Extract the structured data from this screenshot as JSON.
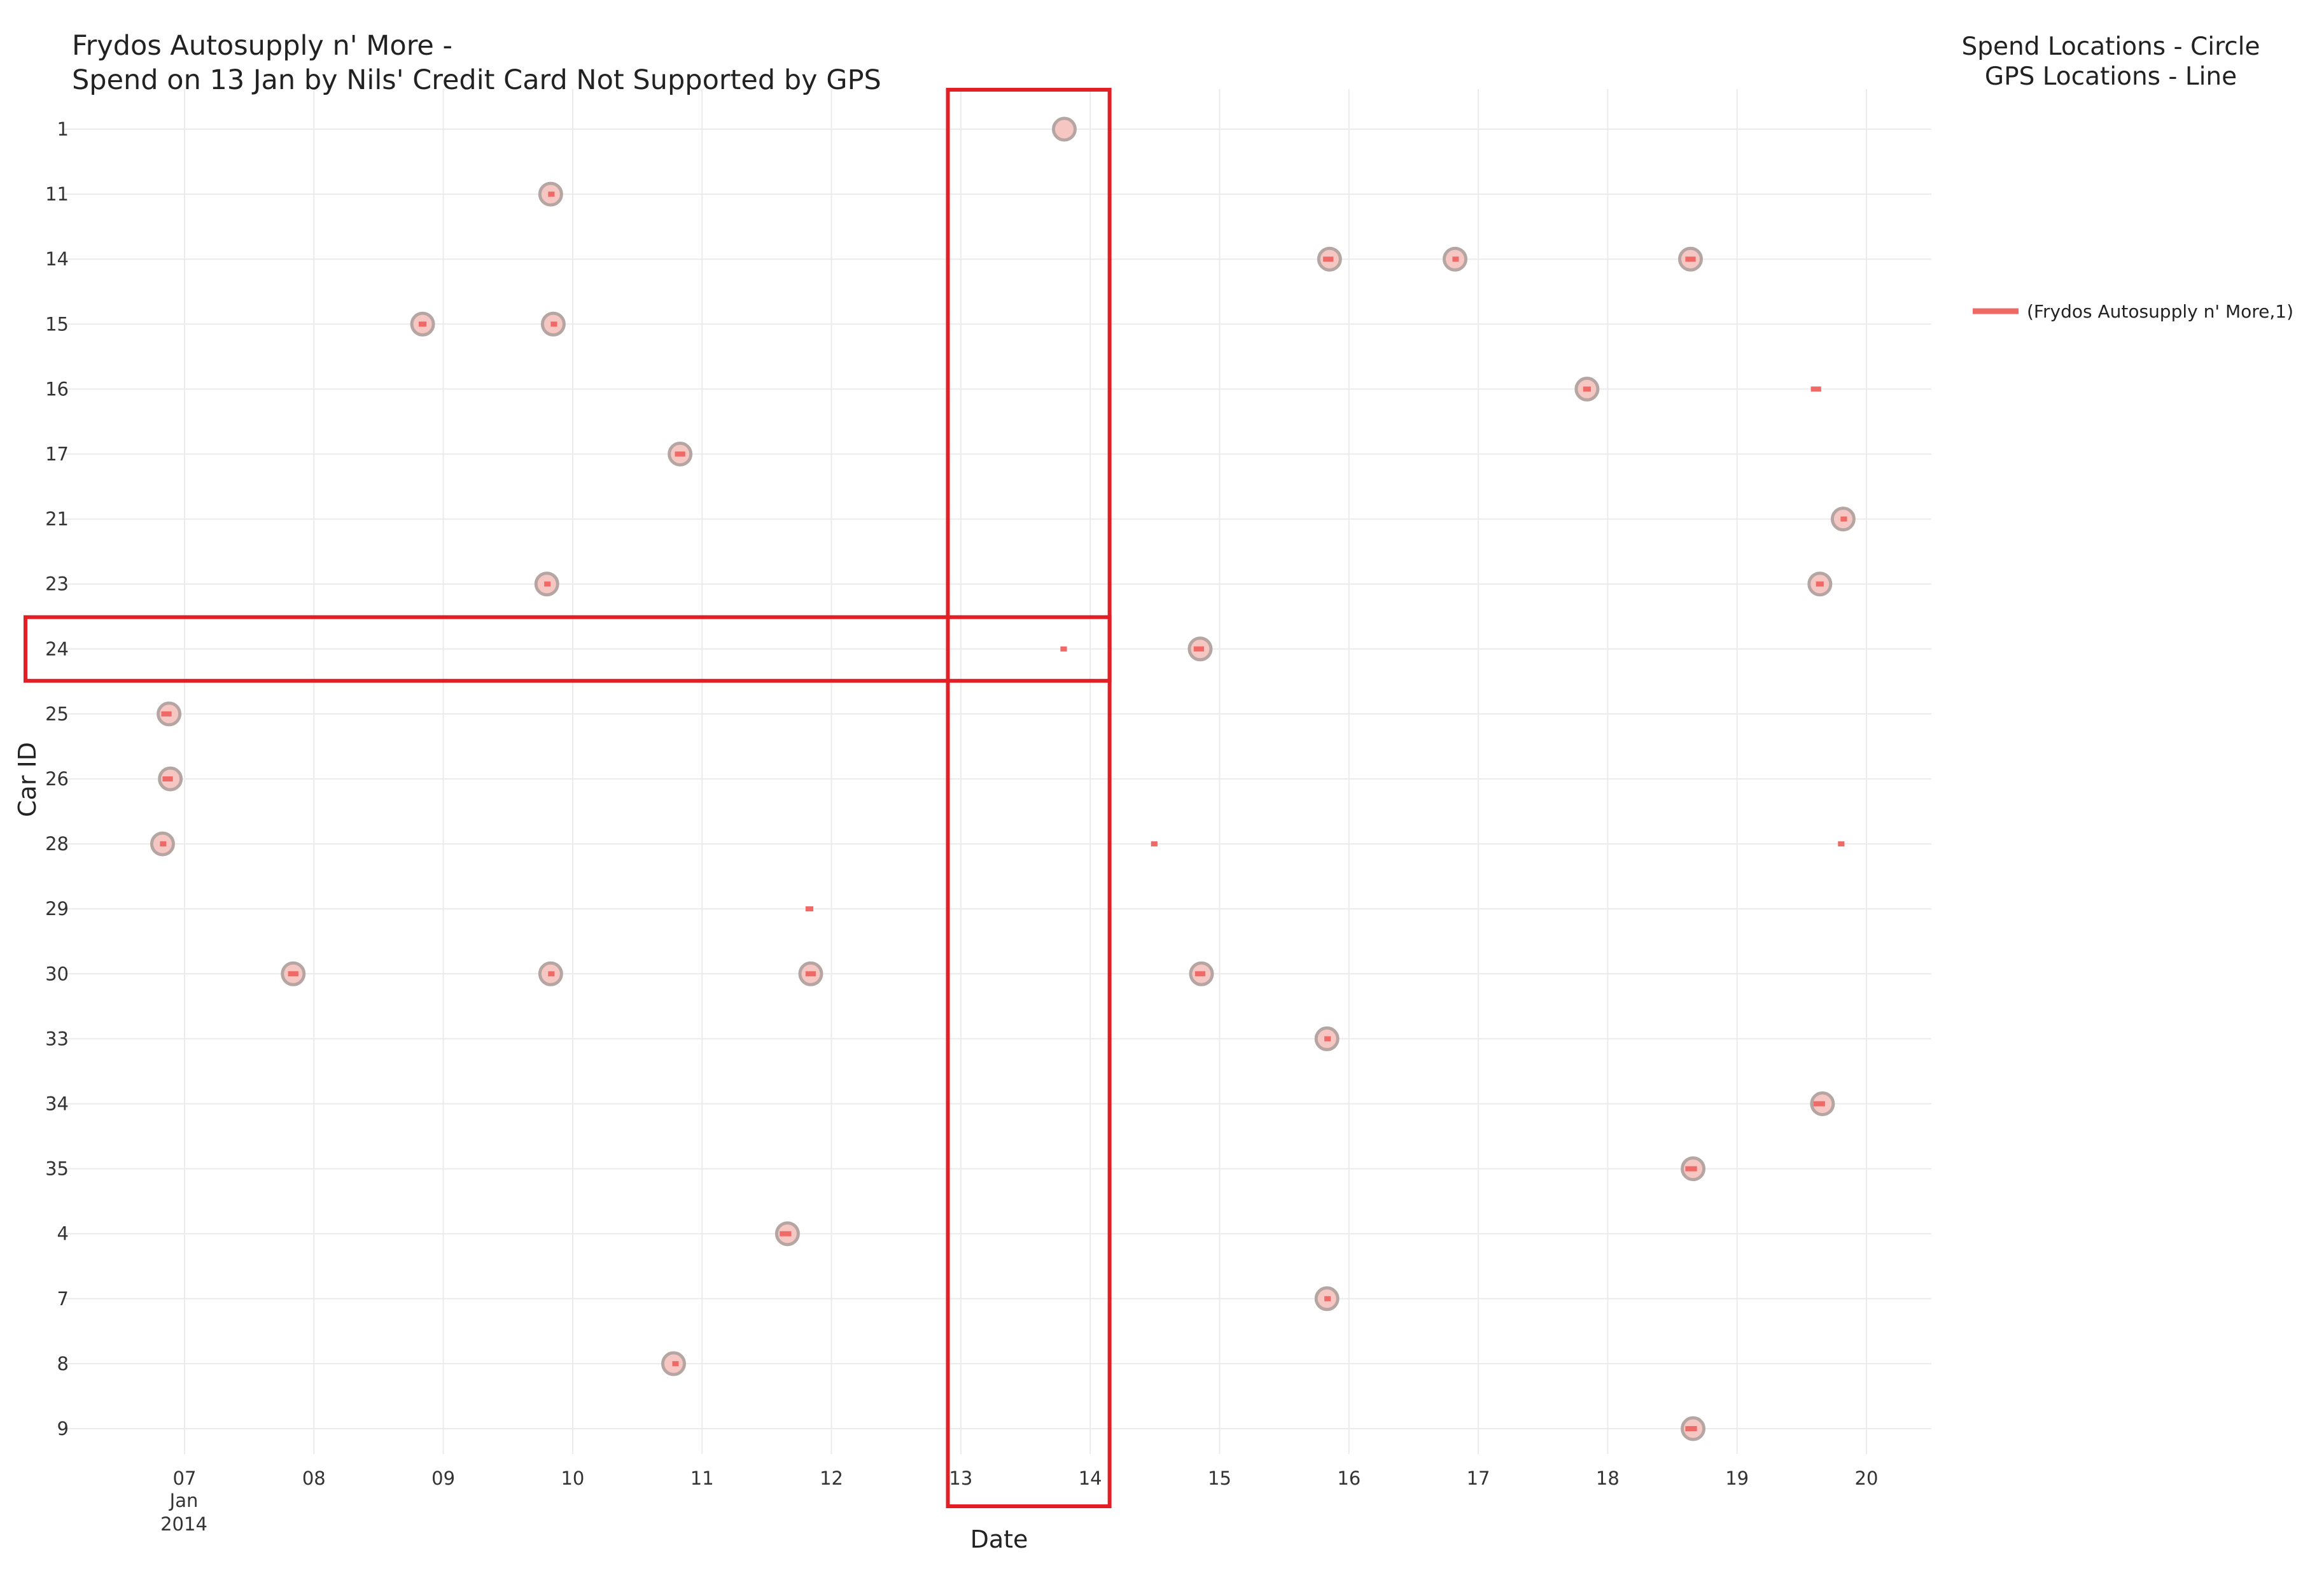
{
  "chart_data": {
    "type": "scatter",
    "title": "Frydos Autosupply n' More -",
    "subtitle": "Spend on 13 Jan by Nils' Credit Card Not Supported by GPS",
    "notes": [
      "Spend Locations - Circle",
      "GPS Locations - Line"
    ],
    "xlabel": "Date",
    "ylabel": "Car ID",
    "x_ticks": [
      "07",
      "08",
      "09",
      "10",
      "11",
      "12",
      "13",
      "14",
      "15",
      "16",
      "17",
      "18",
      "19",
      "20"
    ],
    "x_tick_sub": [
      "Jan",
      "2014"
    ],
    "xlim": [
      6.2,
      20.5
    ],
    "y_categories": [
      "1",
      "11",
      "14",
      "15",
      "16",
      "17",
      "21",
      "23",
      "24",
      "25",
      "26",
      "28",
      "29",
      "30",
      "33",
      "34",
      "35",
      "4",
      "7",
      "8",
      "9"
    ],
    "legend": {
      "entries": [
        "(Frydos Autosupply n' More,1)"
      ],
      "position": "right"
    },
    "colors": {
      "circle_fill": "#f6c7c2",
      "circle_stroke": "#b6a6a3",
      "line": "#ef6a66",
      "highlight": "#e31e24",
      "grid": "#ebebeb"
    },
    "spend_circles": [
      {
        "car": "1",
        "date": 13.8
      },
      {
        "car": "11",
        "date": 9.83
      },
      {
        "car": "14",
        "date": 15.85
      },
      {
        "car": "14",
        "date": 16.82
      },
      {
        "car": "14",
        "date": 18.64
      },
      {
        "car": "15",
        "date": 8.84
      },
      {
        "car": "15",
        "date": 9.85
      },
      {
        "car": "16",
        "date": 17.84
      },
      {
        "car": "17",
        "date": 10.83
      },
      {
        "car": "21",
        "date": 19.82
      },
      {
        "car": "23",
        "date": 9.8
      },
      {
        "car": "23",
        "date": 19.64
      },
      {
        "car": "24",
        "date": 14.85
      },
      {
        "car": "25",
        "date": 6.88
      },
      {
        "car": "26",
        "date": 6.89
      },
      {
        "car": "28",
        "date": 6.83
      },
      {
        "car": "30",
        "date": 7.84
      },
      {
        "car": "30",
        "date": 9.83
      },
      {
        "car": "30",
        "date": 11.84
      },
      {
        "car": "30",
        "date": 14.86
      },
      {
        "car": "33",
        "date": 15.83
      },
      {
        "car": "34",
        "date": 19.66
      },
      {
        "car": "35",
        "date": 18.66
      },
      {
        "car": "4",
        "date": 11.66
      },
      {
        "car": "7",
        "date": 15.83
      },
      {
        "car": "8",
        "date": 10.78
      },
      {
        "car": "9",
        "date": 18.66
      }
    ],
    "gps_lines": [
      {
        "car": "11",
        "start": 9.81,
        "end": 9.86
      },
      {
        "car": "14",
        "start": 15.8,
        "end": 15.88
      },
      {
        "car": "14",
        "start": 16.8,
        "end": 16.84
      },
      {
        "car": "14",
        "start": 18.6,
        "end": 18.68
      },
      {
        "car": "15",
        "start": 8.81,
        "end": 8.87
      },
      {
        "car": "15",
        "start": 9.83,
        "end": 9.88
      },
      {
        "car": "16",
        "start": 17.81,
        "end": 17.87
      },
      {
        "car": "16",
        "start": 19.57,
        "end": 19.65
      },
      {
        "car": "17",
        "start": 10.79,
        "end": 10.87
      },
      {
        "car": "21",
        "start": 19.8,
        "end": 19.85
      },
      {
        "car": "23",
        "start": 9.78,
        "end": 9.82
      },
      {
        "car": "23",
        "start": 19.61,
        "end": 19.67
      },
      {
        "car": "24",
        "start": 13.77,
        "end": 13.82
      },
      {
        "car": "24",
        "start": 14.8,
        "end": 14.88
      },
      {
        "car": "25",
        "start": 6.82,
        "end": 6.9
      },
      {
        "car": "26",
        "start": 6.83,
        "end": 6.91
      },
      {
        "car": "28",
        "start": 6.81,
        "end": 6.85
      },
      {
        "car": "28",
        "start": 14.47,
        "end": 14.52
      },
      {
        "car": "28",
        "start": 19.78,
        "end": 19.83
      },
      {
        "car": "29",
        "start": 11.8,
        "end": 11.86
      },
      {
        "car": "30",
        "start": 7.8,
        "end": 7.88
      },
      {
        "car": "30",
        "start": 9.81,
        "end": 9.86
      },
      {
        "car": "30",
        "start": 11.8,
        "end": 11.88
      },
      {
        "car": "30",
        "start": 14.81,
        "end": 14.89
      },
      {
        "car": "33",
        "start": 15.81,
        "end": 15.86
      },
      {
        "car": "34",
        "start": 19.59,
        "end": 19.68
      },
      {
        "car": "35",
        "start": 18.6,
        "end": 18.69
      },
      {
        "car": "4",
        "start": 11.6,
        "end": 11.69
      },
      {
        "car": "7",
        "start": 15.81,
        "end": 15.85
      },
      {
        "car": "8",
        "start": 10.77,
        "end": 10.8
      },
      {
        "car": "9",
        "start": 18.6,
        "end": 18.69
      }
    ],
    "highlight": {
      "x_range": [
        12.9,
        14.15
      ],
      "row": "24"
    }
  }
}
